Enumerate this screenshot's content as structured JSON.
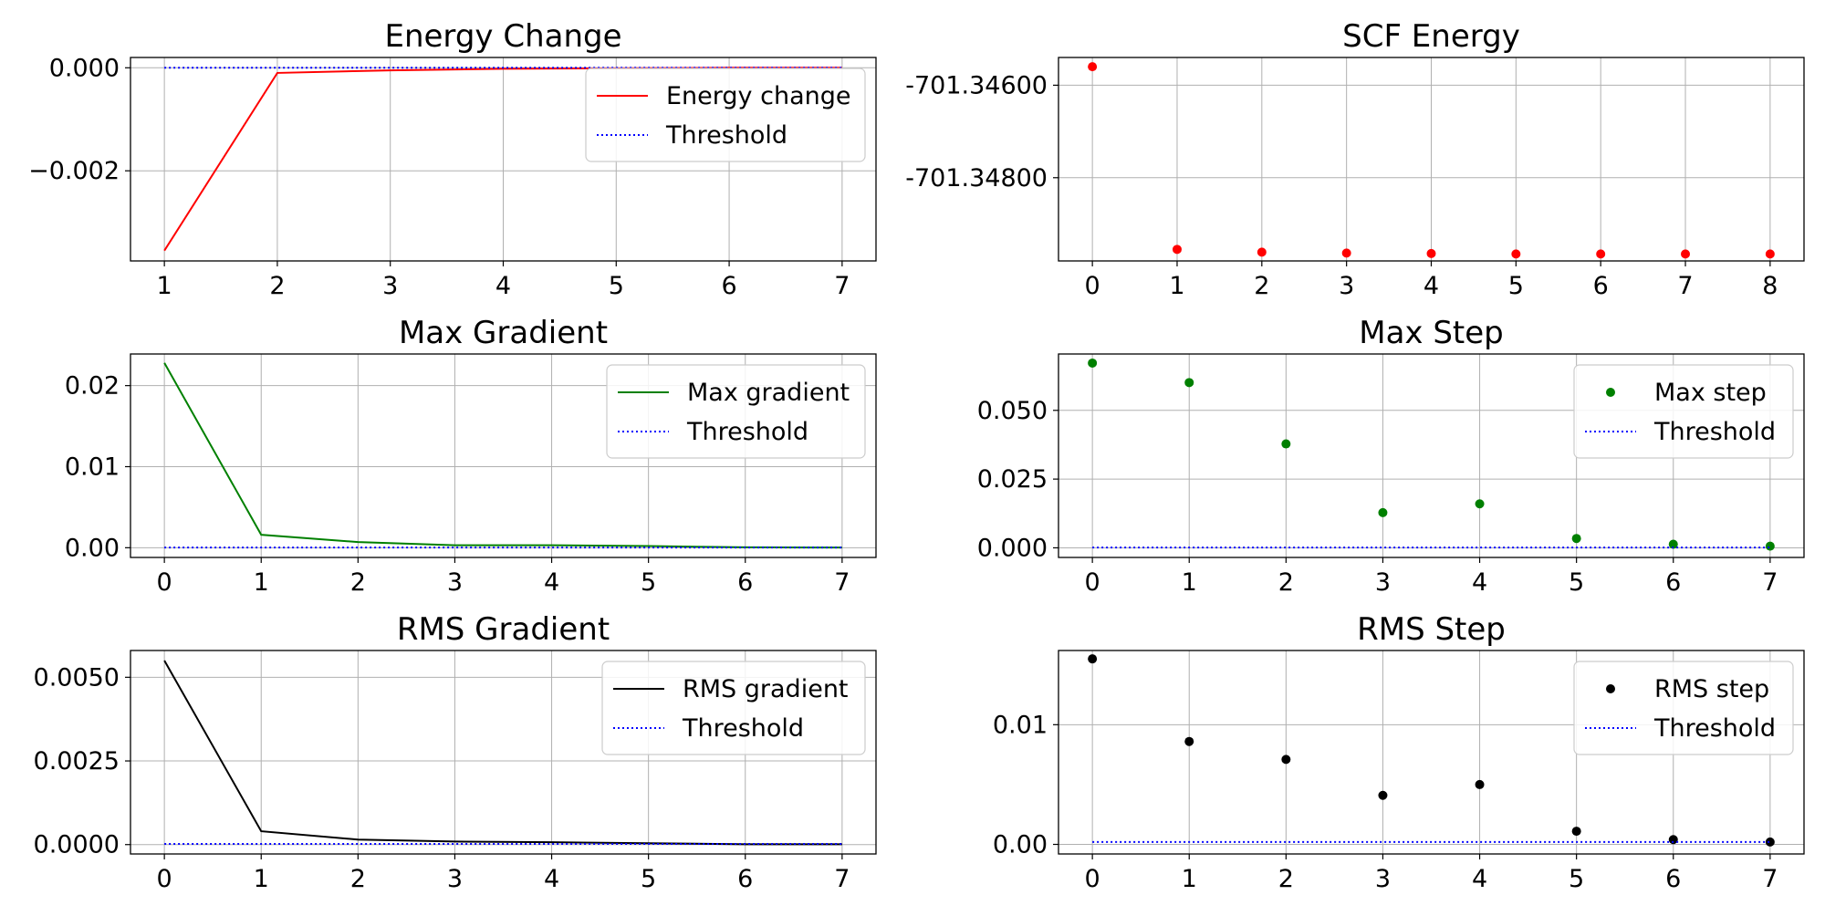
{
  "chart_data": [
    {
      "type": "line",
      "title": "Energy Change",
      "xlabel": "",
      "ylabel": "",
      "xlim": [
        0.7,
        7.3
      ],
      "ylim": [
        -0.00375,
        0.0002
      ],
      "xticks": [
        1,
        2,
        3,
        4,
        5,
        6,
        7
      ],
      "yticks": [
        0.0,
        -0.002
      ],
      "ytick_labels": [
        "0.000",
        "−0.002"
      ],
      "grid": true,
      "legend_position": "top-right",
      "series": [
        {
          "name": "Energy change",
          "style": "line",
          "color": "#ff0000",
          "x": [
            1,
            2,
            3,
            4,
            5,
            6,
            7
          ],
          "y": [
            -0.00355,
            -0.0001,
            -5e-05,
            -2e-05,
            -1e-05,
            0.0,
            0.0
          ]
        },
        {
          "name": "Threshold",
          "style": "dotted",
          "color": "#0000ff",
          "x": [
            1,
            7
          ],
          "y": [
            0.0,
            0.0
          ]
        }
      ]
    },
    {
      "type": "scatter",
      "title": "SCF Energy",
      "xlabel": "",
      "ylabel": "",
      "xlim": [
        -0.4,
        8.4
      ],
      "ylim": [
        -701.3498,
        -701.3454
      ],
      "xticks": [
        0,
        1,
        2,
        3,
        4,
        5,
        6,
        7,
        8
      ],
      "yticks": [
        -701.346,
        -701.348
      ],
      "ytick_labels": [
        "-701.34600",
        "-701.34800"
      ],
      "grid": true,
      "series": [
        {
          "name": "",
          "style": "marker",
          "color": "#ff0000",
          "x": [
            0,
            1,
            2,
            3,
            4,
            5,
            6,
            7,
            8
          ],
          "y": [
            -701.3456,
            -701.34955,
            -701.34961,
            -701.34963,
            -701.34964,
            -701.34965,
            -701.34965,
            -701.34965,
            -701.34965
          ]
        }
      ]
    },
    {
      "type": "line",
      "title": "Max Gradient",
      "xlabel": "",
      "ylabel": "",
      "xlim": [
        -0.35,
        7.35
      ],
      "ylim": [
        -0.0012,
        0.0239
      ],
      "xticks": [
        0,
        1,
        2,
        3,
        4,
        5,
        6,
        7
      ],
      "yticks": [
        0.0,
        0.01,
        0.02
      ],
      "ytick_labels": [
        "0.00",
        "0.01",
        "0.02"
      ],
      "grid": true,
      "legend_position": "top-right",
      "series": [
        {
          "name": "Max gradient",
          "style": "line",
          "color": "#008000",
          "x": [
            0,
            1,
            2,
            3,
            4,
            5,
            6,
            7
          ],
          "y": [
            0.0228,
            0.0016,
            0.0007,
            0.0003,
            0.0003,
            0.0002,
            5e-05,
            2e-05
          ]
        },
        {
          "name": "Threshold",
          "style": "dotted",
          "color": "#0000ff",
          "x": [
            0,
            7
          ],
          "y": [
            3e-05,
            3e-05
          ]
        }
      ]
    },
    {
      "type": "scatter",
      "title": "Max Step",
      "xlabel": "",
      "ylabel": "",
      "xlim": [
        -0.35,
        7.35
      ],
      "ylim": [
        -0.0035,
        0.0705
      ],
      "xticks": [
        0,
        1,
        2,
        3,
        4,
        5,
        6,
        7
      ],
      "yticks": [
        0.0,
        0.025,
        0.05
      ],
      "ytick_labels": [
        "0.000",
        "0.025",
        "0.050"
      ],
      "grid": true,
      "legend_position": "top-right",
      "series": [
        {
          "name": "Max step",
          "style": "marker",
          "color": "#008000",
          "x": [
            0,
            1,
            2,
            3,
            4,
            5,
            6,
            7
          ],
          "y": [
            0.0672,
            0.0601,
            0.0378,
            0.0128,
            0.016,
            0.0034,
            0.0013,
            0.0006
          ]
        },
        {
          "name": "Threshold",
          "style": "dotted",
          "color": "#0000ff",
          "x": [
            0,
            7
          ],
          "y": [
            0.00012,
            0.00012
          ]
        }
      ]
    },
    {
      "type": "line",
      "title": "RMS Gradient",
      "xlabel": "",
      "ylabel": "",
      "xlim": [
        -0.35,
        7.35
      ],
      "ylim": [
        -0.00028,
        0.0058
      ],
      "xticks": [
        0,
        1,
        2,
        3,
        4,
        5,
        6,
        7
      ],
      "yticks": [
        0.0,
        0.0025,
        0.005
      ],
      "ytick_labels": [
        "0.0000",
        "0.0025",
        "0.0050"
      ],
      "grid": true,
      "legend_position": "top-right",
      "series": [
        {
          "name": "RMS gradient",
          "style": "line",
          "color": "#000000",
          "x": [
            0,
            1,
            2,
            3,
            4,
            5,
            6,
            7
          ],
          "y": [
            0.0055,
            0.0004,
            0.00015,
            9e-05,
            7e-05,
            4e-05,
            1e-05,
            1e-05
          ]
        },
        {
          "name": "Threshold",
          "style": "dotted",
          "color": "#0000ff",
          "x": [
            0,
            7
          ],
          "y": [
            2e-05,
            2e-05
          ]
        }
      ]
    },
    {
      "type": "scatter",
      "title": "RMS Step",
      "xlabel": "",
      "ylabel": "",
      "xlim": [
        -0.35,
        7.35
      ],
      "ylim": [
        -0.0008,
        0.0162
      ],
      "xticks": [
        0,
        1,
        2,
        3,
        4,
        5,
        6,
        7
      ],
      "yticks": [
        0.0,
        0.01
      ],
      "ytick_labels": [
        "0.00",
        "0.01"
      ],
      "grid": true,
      "legend_position": "top-right",
      "series": [
        {
          "name": "RMS step",
          "style": "marker",
          "color": "#000000",
          "x": [
            0,
            1,
            2,
            3,
            4,
            5,
            6,
            7
          ],
          "y": [
            0.0155,
            0.0086,
            0.0071,
            0.0041,
            0.005,
            0.0011,
            0.0004,
            0.0002
          ]
        },
        {
          "name": "Threshold",
          "style": "dotted",
          "color": "#0000ff",
          "x": [
            0,
            7
          ],
          "y": [
            0.0002,
            0.0002
          ]
        }
      ]
    }
  ]
}
